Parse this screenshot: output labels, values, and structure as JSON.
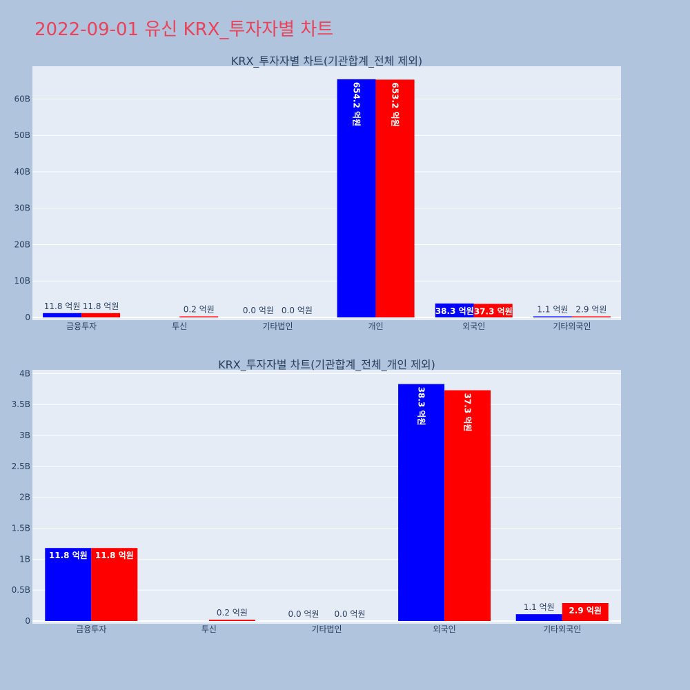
{
  "page": {
    "title": "2022-09-01 유신 KRX_투자자별 차트"
  },
  "colors": {
    "buy": "#0000ff",
    "sell": "#ff0000",
    "plot_bg": "#e5ecf6",
    "page_bg": "#b0c4de"
  },
  "chart_data": [
    {
      "type": "bar",
      "title": "KRX_투자자별 차트(기관합계_전체 제외)",
      "categories": [
        "금융투자",
        "투신",
        "기타법인",
        "개인",
        "외국인",
        "기타외국인"
      ],
      "series": [
        {
          "values": [
            1.18,
            0.0,
            0.0,
            65.42,
            3.83,
            0.11
          ],
          "labels": [
            "11.8 억원",
            "",
            "0.0 억원",
            "654.2 억원",
            "38.3 억원",
            "1.1 억원"
          ]
        },
        {
          "values": [
            1.18,
            0.02,
            0.0,
            65.32,
            3.73,
            0.29
          ],
          "labels": [
            "11.8 억원",
            "0.2 억원",
            "0.0 억원",
            "653.2 억원",
            "37.3 억원",
            "2.9 억원"
          ]
        }
      ],
      "value_unit": "B",
      "ylim": [
        0,
        69
      ],
      "yticks": [
        0,
        10,
        20,
        30,
        40,
        50,
        60
      ],
      "ytick_labels": [
        "0",
        "10B",
        "20B",
        "30B",
        "40B",
        "50B",
        "60B"
      ],
      "grid": true
    },
    {
      "type": "bar",
      "title": "KRX_투자자별 차트(기관합계_전체_개인 제외)",
      "categories": [
        "금융투자",
        "투신",
        "기타법인",
        "외국인",
        "기타외국인"
      ],
      "series": [
        {
          "values": [
            1.18,
            0.0,
            0.0,
            3.83,
            0.11
          ],
          "labels": [
            "11.8 억원",
            "",
            "0.0 억원",
            "38.3 억원",
            "1.1 억원"
          ]
        },
        {
          "values": [
            1.18,
            0.02,
            0.0,
            3.73,
            0.29
          ],
          "labels": [
            "11.8 억원",
            "0.2 억원",
            "0.0 억원",
            "37.3 억원",
            "2.9 억원"
          ]
        }
      ],
      "value_unit": "B",
      "ylim": [
        0,
        4.06
      ],
      "yticks": [
        0,
        0.5,
        1,
        1.5,
        2,
        2.5,
        3,
        3.5,
        4
      ],
      "ytick_labels": [
        "0",
        "0.5B",
        "1B",
        "1.5B",
        "2B",
        "2.5B",
        "3B",
        "3.5B",
        "4B"
      ],
      "grid": true
    }
  ]
}
